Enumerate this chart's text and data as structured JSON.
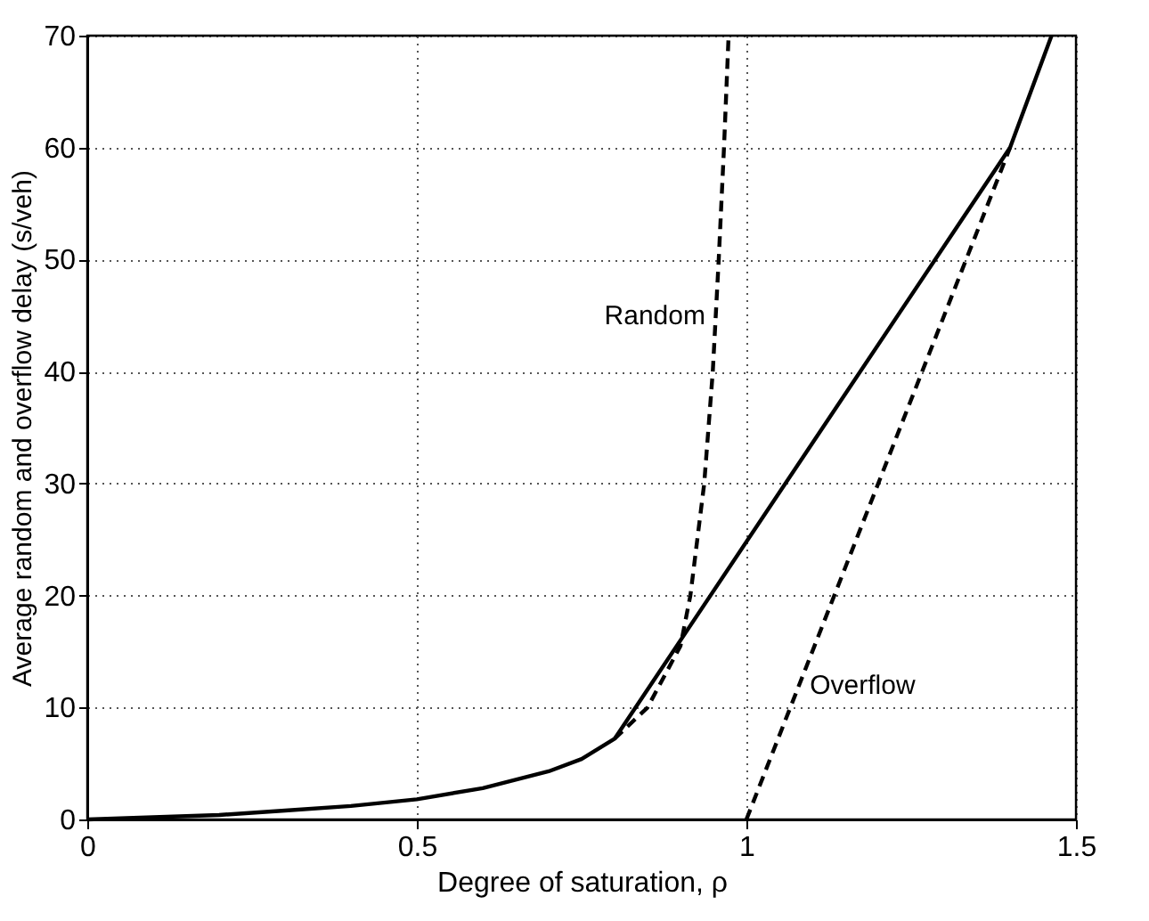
{
  "chart_data": {
    "type": "line",
    "xlabel": "Degree of saturation, ρ",
    "ylabel": "Average random and overflow delay (s/veh)",
    "xlim": [
      0,
      1.5
    ],
    "xticks": [
      0,
      0.5,
      1,
      1.5
    ],
    "ylim": [
      0,
      70
    ],
    "yticks": [
      0,
      10,
      20,
      30,
      40,
      50,
      60,
      70
    ],
    "grid": true,
    "marker": "none",
    "series": [
      {
        "color": "#000000",
        "line_style": "solid",
        "x": [
          0,
          0.1,
          0.2,
          0.3,
          0.4,
          0.5,
          0.6,
          0.7,
          0.75,
          0.8,
          1.4,
          1.463
        ],
        "values": [
          0,
          0.2,
          0.4,
          0.8,
          1.2,
          1.8,
          2.8,
          4.3,
          5.4,
          7.2,
          60,
          70
        ]
      },
      {
        "color": "#000000",
        "line_style": "dashed",
        "x": [
          0.8,
          0.85,
          0.9,
          0.915,
          0.936,
          0.949,
          0.958,
          0.966,
          0.973
        ],
        "values": [
          7.2,
          10,
          15.5,
          20,
          30,
          40,
          50,
          60,
          70
        ]
      },
      {
        "color": "#000000",
        "line_style": "dashed",
        "x": [
          1,
          1.4
        ],
        "values": [
          0,
          60
        ]
      }
    ],
    "annotations": [
      {
        "text": "Random",
        "x": 0.954,
        "y": 45
      },
      {
        "text": "Overflow",
        "x": 1.08,
        "y": 12
      }
    ]
  }
}
